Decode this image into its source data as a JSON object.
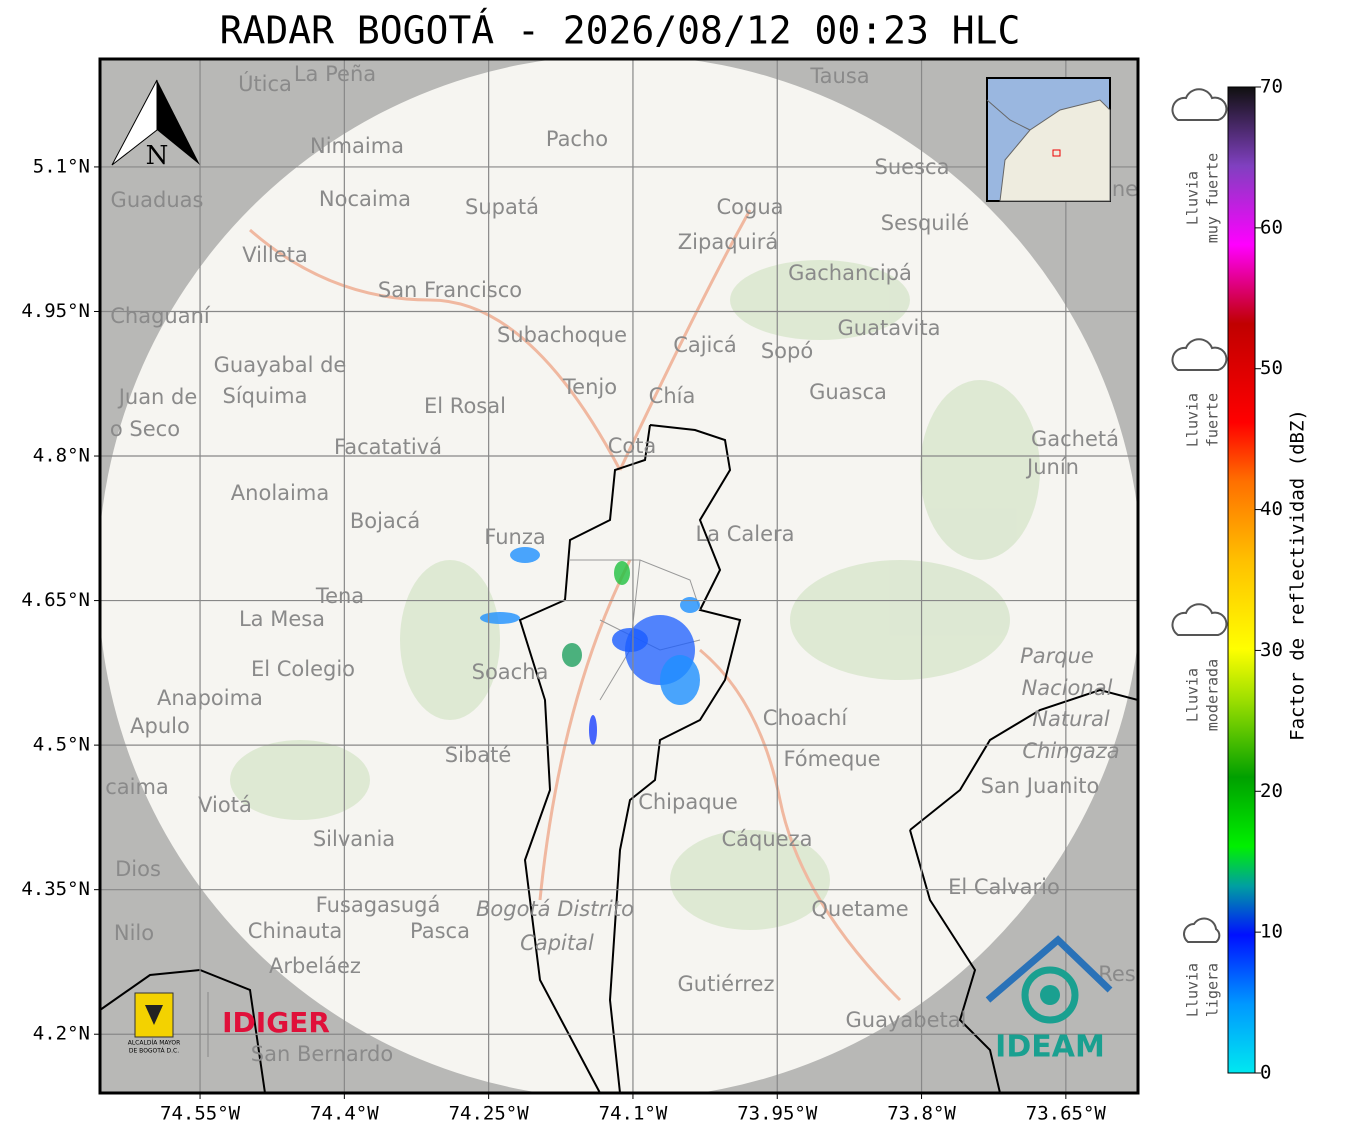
{
  "title": "RADAR BOGOTÁ - 2026/08/12 00:23 HLC",
  "map": {
    "xlim": [
      -74.654,
      -73.575
    ],
    "ylim": [
      4.139,
      5.212
    ],
    "xticks": [
      {
        "value": -74.55,
        "label": "74.55°W"
      },
      {
        "value": -74.4,
        "label": "74.4°W"
      },
      {
        "value": -74.25,
        "label": "74.25°W"
      },
      {
        "value": -74.1,
        "label": "74.1°W"
      },
      {
        "value": -73.95,
        "label": "73.95°W"
      },
      {
        "value": -73.8,
        "label": "73.8°W"
      },
      {
        "value": -73.65,
        "label": "73.65°W"
      }
    ],
    "yticks": [
      {
        "value": 5.1,
        "label": "5.1°N"
      },
      {
        "value": 4.95,
        "label": "4.95°N"
      },
      {
        "value": 4.8,
        "label": "4.8°N"
      },
      {
        "value": 4.65,
        "label": "4.65°N"
      },
      {
        "value": 4.5,
        "label": "4.5°N"
      },
      {
        "value": 4.35,
        "label": "4.35°N"
      },
      {
        "value": 4.2,
        "label": "4.2°N"
      }
    ],
    "places": [
      "Útica",
      "La Peña",
      "Tausa",
      "Pacho",
      "Nimaima",
      "Guaduas",
      "Nocaima",
      "Supatá",
      "Cogua",
      "Suesca",
      "Sesquilé",
      "Zipaquirá",
      "Villeta",
      "Gachancipá",
      "San Francisco",
      "Chaguaní",
      "Guatavita",
      "Subachoque",
      "Cajicá",
      "Sopó",
      "Guayabal de",
      "Síquima",
      "Juan de",
      "o Seco",
      "Tenjo",
      "Chía",
      "Guasca",
      "El Rosal",
      "Cota",
      "Facatativá",
      "Gachetá",
      "Junín",
      "Anolaima",
      "Bojacá",
      "Funza",
      "La Calera",
      "Tena",
      "La Mesa",
      "Soacha",
      "El Colegio",
      "Parque",
      "Nacional",
      "Natural",
      "Chingaza",
      "Anapoima",
      "Apulo",
      "Choachí",
      "Sibaté",
      "Fómeque",
      "San Juanito",
      "caima",
      "Viotá",
      "Chipaque",
      "Silvania",
      "Cáqueza",
      "Dios",
      "El Calvario",
      "Fusagasugá",
      "Bogotá Distrito",
      "Capital",
      "Quetame",
      "Nilo",
      "Chinauta",
      "Pasca",
      "Arbeláez",
      "Res",
      "Gutiérrez",
      "Guayabetal",
      "San Bernardo",
      "ne"
    ]
  },
  "compass": "N",
  "logos": {
    "alcaldia": [
      "ALCALDÍA MAYOR",
      "DE BOGOTÁ D.C."
    ],
    "idiger": "IDIGER",
    "ideam": "IDEAM"
  },
  "legend": [
    {
      "lines": [
        "Lluvia",
        "muy fuerte"
      ]
    },
    {
      "lines": [
        "Lluvia",
        "fuerte"
      ]
    },
    {
      "lines": [
        "Lluvia",
        "moderada"
      ]
    },
    {
      "lines": [
        "Lluvia",
        "ligera"
      ]
    }
  ],
  "colorbar": {
    "label": "Factor de reflectividad (dBZ)",
    "lim": [
      0,
      70
    ],
    "ticks": [
      0,
      10,
      20,
      30,
      40,
      50,
      60,
      70
    ]
  }
}
